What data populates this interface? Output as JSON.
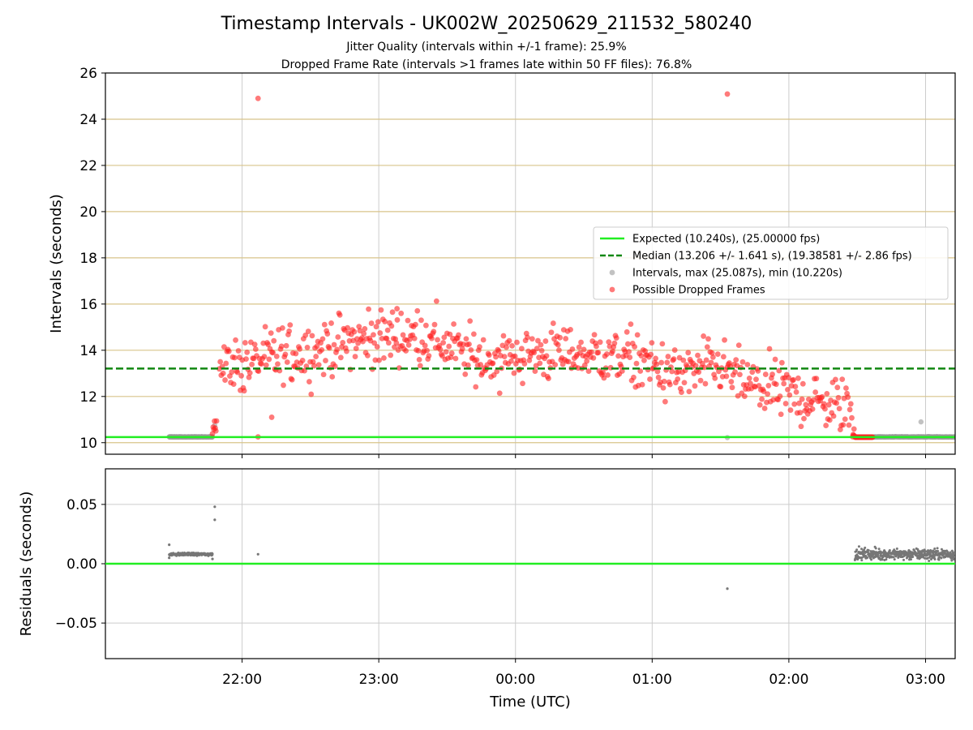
{
  "chart_data": [
    {
      "type": "scatter",
      "title": "Timestamp Intervals - UK002W_20250629_211532_580240",
      "subtitles": [
        "Jitter Quality (intervals within +/-1 frame): 25.9%",
        "Dropped Frame Rate (intervals >1 frames late within 50 FF files): 76.8%"
      ],
      "xlabel": "",
      "ylabel": "Intervals (seconds)",
      "ylim": [
        9.5,
        26
      ],
      "yticks": [
        "10",
        "12",
        "14",
        "16",
        "18",
        "20",
        "22",
        "24",
        "26"
      ],
      "horizontal_reference_lines": [
        10,
        12,
        14,
        16,
        18,
        20,
        22,
        24
      ],
      "lines": [
        {
          "name": "Expected (10.240s), (25.00000 fps)",
          "y": 10.24,
          "color": "#22ee22",
          "style": "solid"
        },
        {
          "name": "Median (13.206 +/- 1.641 s), (19.38581 +/- 2.86 fps)",
          "y": 13.206,
          "color": "#118811",
          "style": "dashed"
        }
      ],
      "series": [
        {
          "name": "Intervals, max (25.087s), min (10.220s)",
          "color": "#999999",
          "max": 25.087,
          "min": 10.22
        },
        {
          "name": "Possible Dropped Frames",
          "color": "#ff2222"
        }
      ],
      "legend_position": "right"
    },
    {
      "type": "scatter",
      "xlabel": "Time (UTC)",
      "ylabel": "Residuals (seconds)",
      "ylim": [
        -0.08,
        0.08
      ],
      "yticks": [
        "0.05",
        "0.00",
        "−0.05"
      ],
      "xticks": [
        "22:00",
        "23:00",
        "00:00",
        "01:00",
        "02:00",
        "03:00"
      ],
      "xlim": [
        "21:00",
        "03:13"
      ],
      "zero_line_color": "#22ee22",
      "series": [
        {
          "name": "Residuals",
          "color": "#777777"
        }
      ]
    }
  ]
}
